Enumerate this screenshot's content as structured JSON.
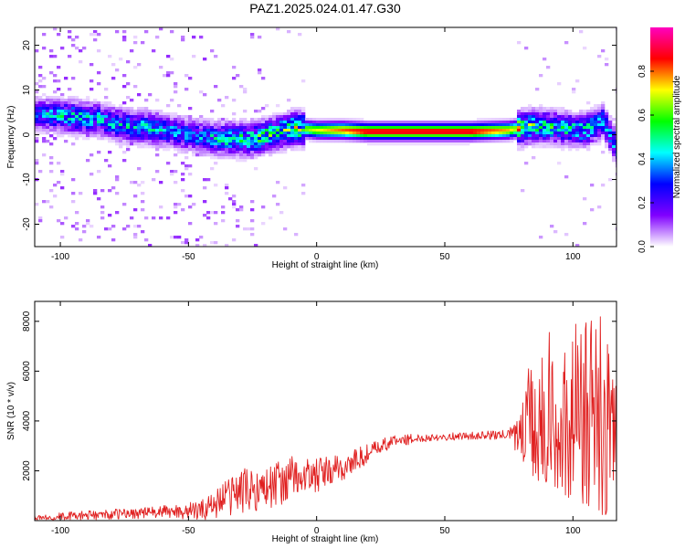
{
  "figure": {
    "title": "PAZ1.2025.024.01.47.G30"
  },
  "chart_data": [
    {
      "type": "heatmap",
      "xlabel": "Height of straight line (km)",
      "ylabel": "Frequency (Hz)",
      "xlim": [
        -110,
        117
      ],
      "ylim": [
        -25,
        24
      ],
      "xticks": [
        "-100",
        "-50",
        "0",
        "50",
        "100"
      ],
      "yticks": [
        "-20",
        "-10",
        "0",
        "10",
        "20"
      ],
      "colorbar": {
        "label": "Normalized spectral amplitude",
        "range": [
          0,
          1
        ],
        "ticks": [
          "0.0",
          "0.2",
          "0.4",
          "0.6",
          "0.8"
        ],
        "colors": [
          "#ffffff",
          "#8000ff",
          "#0000ff",
          "#00ffff",
          "#00ff00",
          "#ffff00",
          "#ff0000",
          "#ff00c0"
        ]
      },
      "ridge": [
        {
          "x": -108,
          "f": 4.5,
          "amp": 0.35
        },
        {
          "x": -95,
          "f": 4.0,
          "amp": 0.45
        },
        {
          "x": -85,
          "f": 3.5,
          "amp": 0.4
        },
        {
          "x": -75,
          "f": 2.0,
          "amp": 0.4
        },
        {
          "x": -65,
          "f": 1.5,
          "amp": 0.4
        },
        {
          "x": -55,
          "f": 0.5,
          "amp": 0.35
        },
        {
          "x": -45,
          "f": -0.5,
          "amp": 0.35
        },
        {
          "x": -35,
          "f": -1.0,
          "amp": 0.45
        },
        {
          "x": -25,
          "f": -1.0,
          "amp": 0.5
        },
        {
          "x": -15,
          "f": 0.5,
          "amp": 0.55
        },
        {
          "x": -8,
          "f": 1.5,
          "amp": 0.6
        },
        {
          "x": 0,
          "f": 1.0,
          "amp": 0.7
        },
        {
          "x": 10,
          "f": 1.0,
          "amp": 0.8
        },
        {
          "x": 20,
          "f": 0.7,
          "amp": 0.9
        },
        {
          "x": 40,
          "f": 0.7,
          "amp": 0.9
        },
        {
          "x": 60,
          "f": 0.7,
          "amp": 0.9
        },
        {
          "x": 75,
          "f": 1.0,
          "amp": 0.75
        },
        {
          "x": 85,
          "f": 2.0,
          "amp": 0.5
        },
        {
          "x": 95,
          "f": 1.5,
          "amp": 0.45
        },
        {
          "x": 105,
          "f": 1.0,
          "amp": 0.45
        },
        {
          "x": 112,
          "f": 3.0,
          "amp": 0.4
        },
        {
          "x": 117,
          "f": -3.0,
          "amp": 0.4
        }
      ]
    },
    {
      "type": "line",
      "xlabel": "Height of straight line (km)",
      "ylabel": "SNR (10 * v/v)",
      "xlim": [
        -110,
        117
      ],
      "ylim": [
        0,
        8800
      ],
      "xticks": [
        "-100",
        "-50",
        "0",
        "50",
        "100"
      ],
      "yticks": [
        "2000",
        "4000",
        "6000",
        "8000"
      ],
      "color": "#e02020",
      "trend": [
        {
          "x": -110,
          "snr": 120,
          "noise": 150
        },
        {
          "x": -80,
          "snr": 250,
          "noise": 200
        },
        {
          "x": -60,
          "snr": 350,
          "noise": 250
        },
        {
          "x": -45,
          "snr": 400,
          "noise": 400
        },
        {
          "x": -38,
          "snr": 800,
          "noise": 700
        },
        {
          "x": -30,
          "snr": 1200,
          "noise": 900
        },
        {
          "x": -20,
          "snr": 1300,
          "noise": 900
        },
        {
          "x": -10,
          "snr": 1700,
          "noise": 900
        },
        {
          "x": 0,
          "snr": 1800,
          "noise": 700
        },
        {
          "x": 10,
          "snr": 2100,
          "noise": 600
        },
        {
          "x": 20,
          "snr": 2700,
          "noise": 400
        },
        {
          "x": 30,
          "snr": 3200,
          "noise": 250
        },
        {
          "x": 45,
          "snr": 3350,
          "noise": 150
        },
        {
          "x": 60,
          "snr": 3400,
          "noise": 150
        },
        {
          "x": 75,
          "snr": 3450,
          "noise": 200
        },
        {
          "x": 80,
          "snr": 3500,
          "noise": 1200
        },
        {
          "x": 90,
          "snr": 3500,
          "noise": 2500
        },
        {
          "x": 100,
          "snr": 3400,
          "noise": 2700
        },
        {
          "x": 110,
          "snr": 3200,
          "noise": 3200
        },
        {
          "x": 117,
          "snr": 3000,
          "noise": 2500
        }
      ]
    }
  ]
}
